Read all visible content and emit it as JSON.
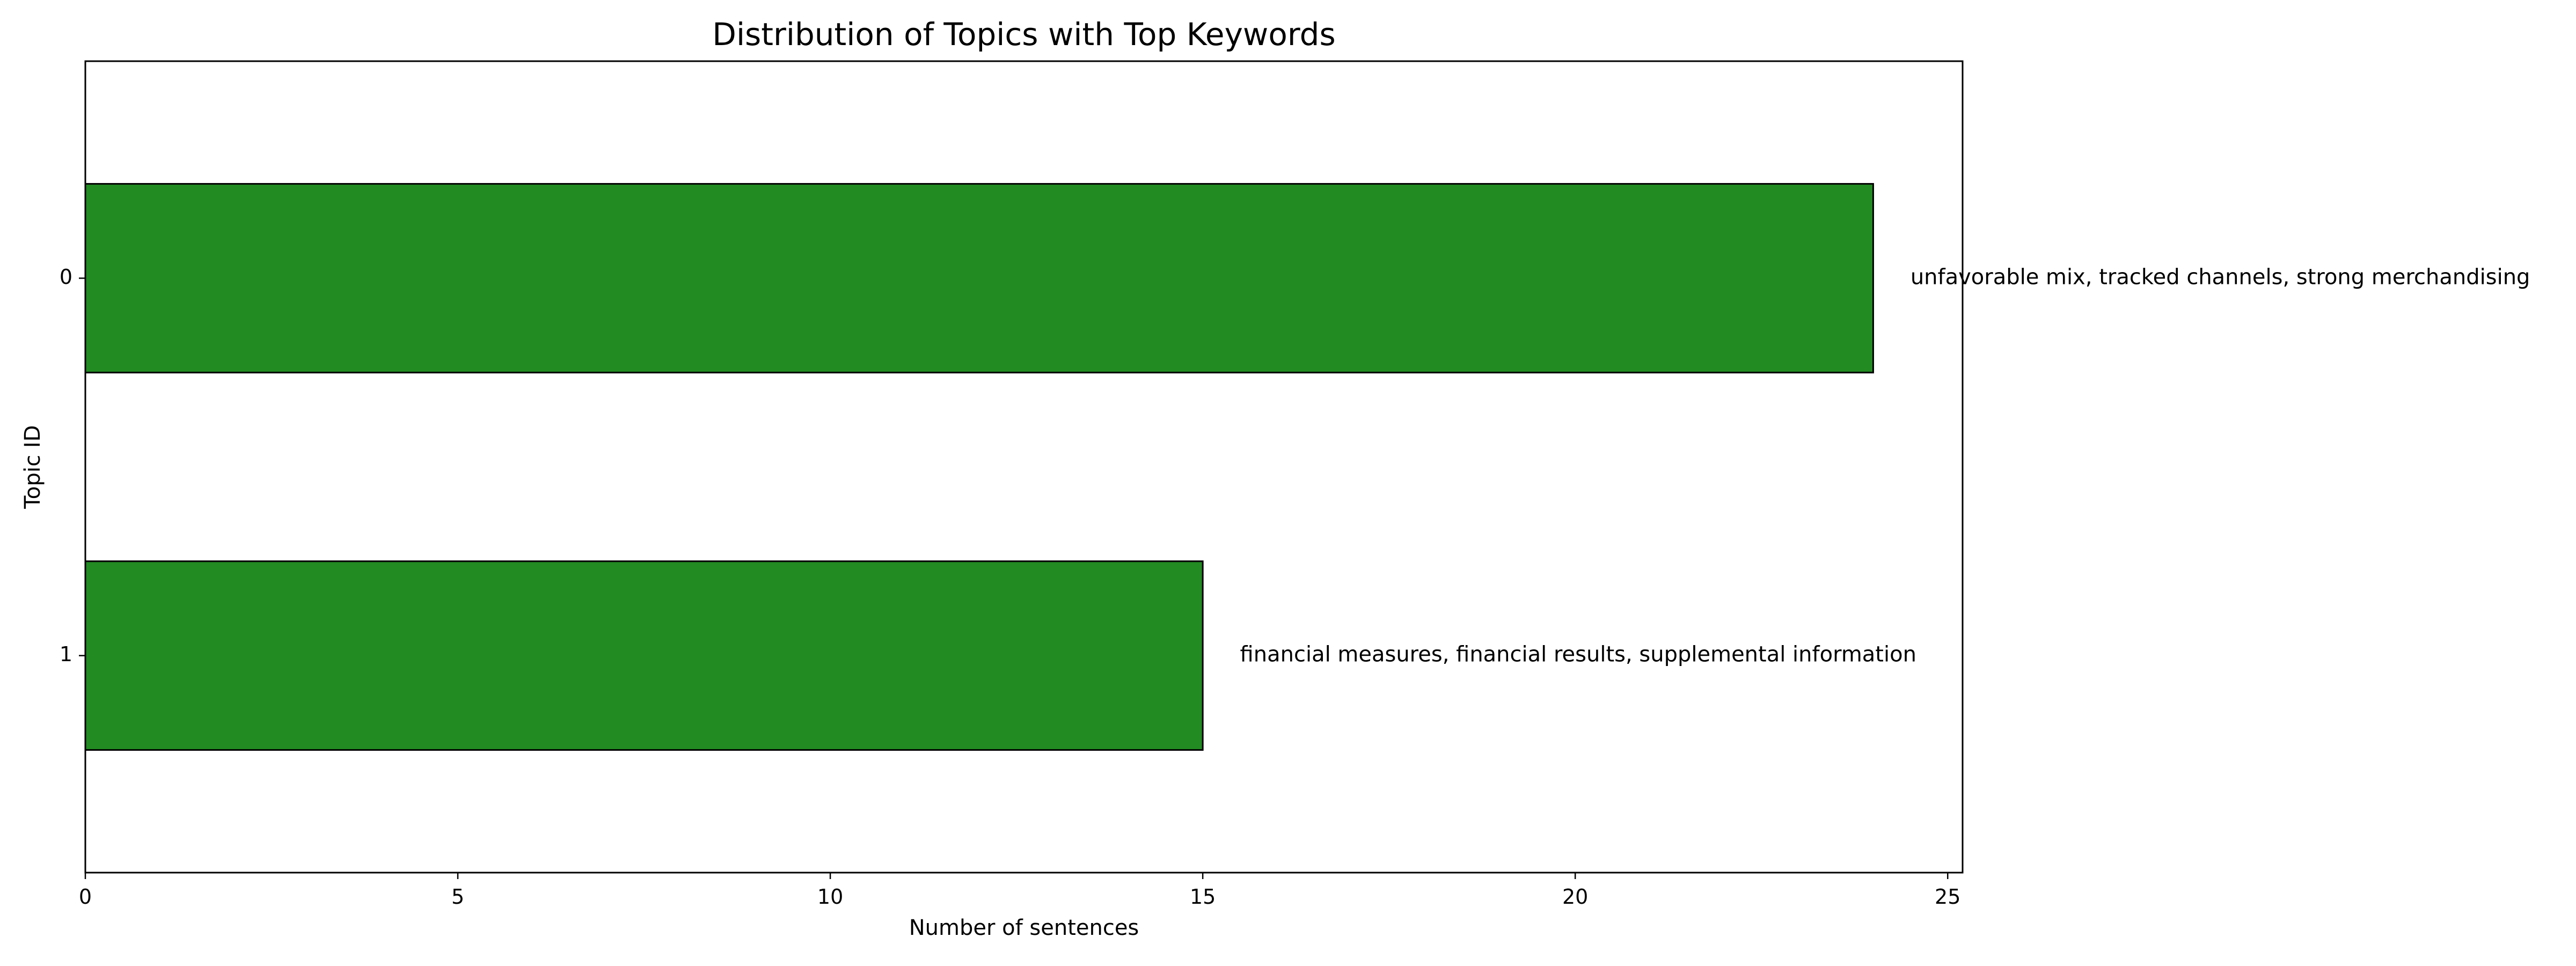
{
  "chart_data": {
    "type": "bar",
    "orientation": "horizontal",
    "title": "Distribution of Topics with Top Keywords",
    "xlabel": "Number of sentences",
    "ylabel": "Topic ID",
    "categories": [
      "0",
      "1"
    ],
    "values": [
      24,
      15
    ],
    "annotations": [
      "unfavorable mix, tracked channels, strong merchandising",
      "financial measures, financial results, supplemental information"
    ],
    "xlim": [
      0,
      25.2
    ],
    "xticks": [
      0,
      5,
      10,
      15,
      20,
      25
    ],
    "grid": false,
    "legend": "none",
    "bar_color": "#228b22",
    "bar_edge_color": "#000000"
  }
}
